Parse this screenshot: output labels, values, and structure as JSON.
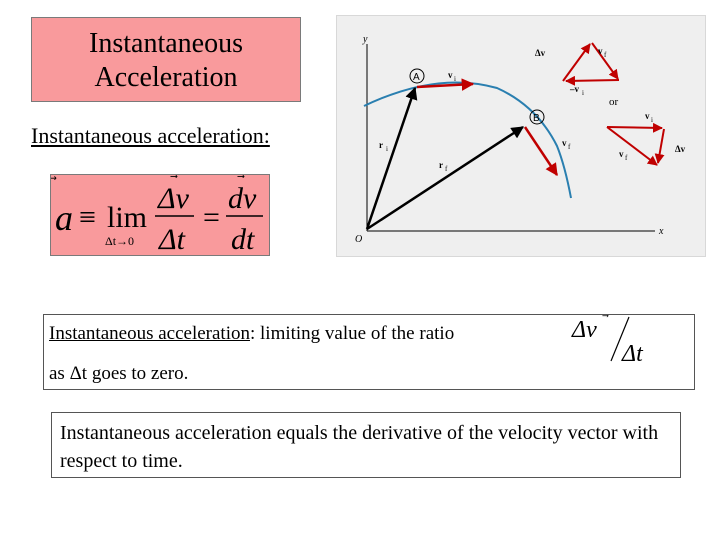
{
  "title": {
    "line1": "Instantaneous",
    "line2": "Acceleration"
  },
  "subheading": "Instantaneous acceleration:",
  "formula": {
    "lhs": "a",
    "equiv": "≡",
    "lim": "lim",
    "limit_sub": "Δt→0",
    "frac1_num": "Δv",
    "frac1_den": "Δt",
    "eq": "=",
    "frac2_num": "dv",
    "frac2_den": "dt",
    "vector_marker": "⃗"
  },
  "figure": {
    "axis_y": "y",
    "axis_x": "x",
    "origin": "O",
    "point_a": "A",
    "point_b": "B",
    "ri": "r",
    "ri_sub": "i",
    "rf": "r",
    "rf_sub": "f",
    "vi": "v",
    "vi_sub": "i",
    "vf": "v",
    "vf_sub": "f",
    "tri1_dv": "Δv",
    "tri1_vf": "v",
    "tri1_vf_sub": "f",
    "tri1_neg_vi": "–v",
    "tri1_neg_vi_sub": "i",
    "or": "or",
    "tri2_vi": "v",
    "tri2_vi_sub": "i",
    "tri2_vf": "v",
    "tri2_vf_sub": "f",
    "tri2_dv": "Δv"
  },
  "definition": {
    "term": "Instantaneous acceleration",
    "rest": ": limiting value of the ratio",
    "line2": "as Δt goes to zero.",
    "ratio_num": "Δv",
    "ratio_den": "Δt"
  },
  "statement": "Instantaneous acceleration equals the derivative of the velocity vector with respect to time."
}
